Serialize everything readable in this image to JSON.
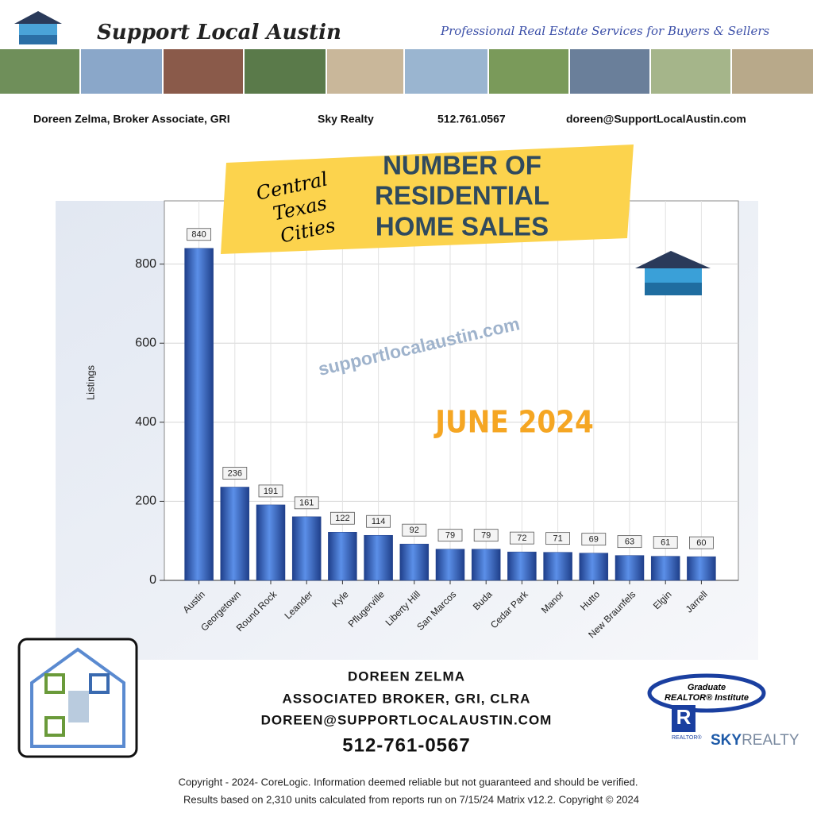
{
  "header": {
    "brand": "Support Local Austin",
    "tagline": "Professional Real Estate Services for Buyers & Sellers",
    "agent": "Doreen Zelma,  Broker Associate, GRI",
    "company": "Sky Realty",
    "phone": "512.761.0567",
    "email": "doreen@SupportLocalAustin.com"
  },
  "chart_data": {
    "type": "bar",
    "title": [
      "NUMBER OF",
      "RESIDENTIAL",
      "HOME SALES"
    ],
    "banner_label": [
      "Central",
      "Texas",
      "Cities"
    ],
    "annotation": "JUNE 2024",
    "watermark": "supportlocalaustin.com",
    "ylabel": "Listings",
    "categories": [
      "Austin",
      "Georgetown",
      "Round Rock",
      "Leander",
      "Kyle",
      "Pflugerville",
      "Liberty Hill",
      "San Marcos",
      "Buda",
      "Cedar Park",
      "Manor",
      "Hutto",
      "New Braunfels",
      "Elgin",
      "Jarrell"
    ],
    "values": [
      840,
      236,
      191,
      161,
      122,
      114,
      92,
      79,
      79,
      72,
      71,
      69,
      63,
      61,
      60
    ],
    "color": "#5b8fe8",
    "ylim": [
      0,
      960
    ],
    "yticks": [
      0,
      200,
      400,
      600,
      800
    ],
    "grid": true
  },
  "contact": {
    "name": "DOREEN ZELMA",
    "role": "ASSOCIATED BROKER, GRI, CLRA",
    "email": "DOREEN@SUPPORTLOCALAUSTIN.COM",
    "phone": "512-761-0567"
  },
  "logos": {
    "gri_top": "Graduate",
    "gri_bottom": "REALTOR® Institute",
    "realtor": "REALTOR®",
    "sky": "SKY",
    "realty": "REALTY"
  },
  "footer": [
    "Copyright - 2024- CoreLogic. Information deemed reliable but not guaranteed and should be verified.",
    "Results based on 2,310 units calculated from reports run on 7/15/24 Matrix v12.2. Copyright © 2024"
  ]
}
